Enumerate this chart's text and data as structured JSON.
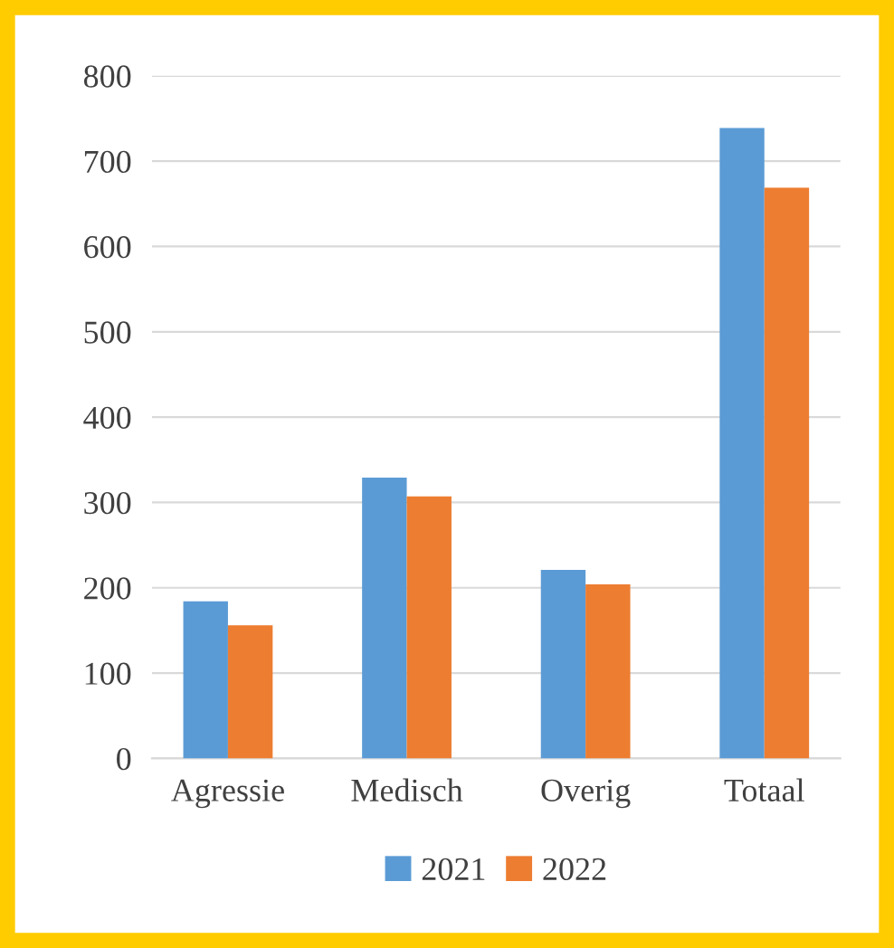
{
  "chart_data": {
    "type": "bar",
    "categories": [
      "Agressie",
      "Medisch",
      "Overig",
      "Totaal"
    ],
    "series": [
      {
        "name": "2021",
        "color": "#5b9bd5",
        "values": [
          184,
          329,
          221,
          739
        ]
      },
      {
        "name": "2022",
        "color": "#ed7d31",
        "values": [
          156,
          307,
          204,
          669
        ]
      }
    ],
    "ylim": [
      0,
      800
    ],
    "yticks": [
      0,
      100,
      200,
      300,
      400,
      500,
      600,
      700,
      800
    ],
    "grid": "y",
    "legend": "bottom"
  }
}
